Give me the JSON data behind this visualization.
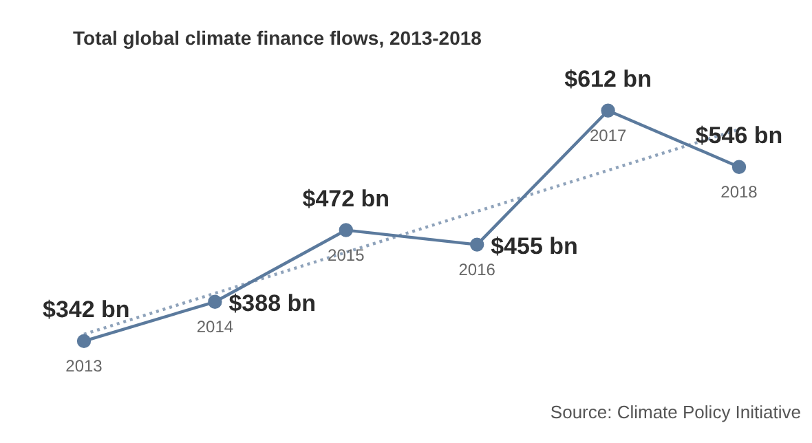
{
  "chart_data": {
    "type": "line",
    "title": "Total global climate finance flows, 2013-2018",
    "categories": [
      "2013",
      "2014",
      "2015",
      "2016",
      "2017",
      "2018"
    ],
    "series": [
      {
        "type": "line",
        "color": "#5b7a9d",
        "values": [
          342,
          388,
          472,
          455,
          612,
          546
        ],
        "value_labels": [
          "$342 bn",
          "$388 bn",
          "$472 bn",
          "$455 bn",
          "$612 bn",
          "$546 bn"
        ],
        "marker": "circle",
        "line_style": "solid"
      },
      {
        "type": "line",
        "color": "#8fa3bb",
        "values": [
          350,
          398,
          446,
          494,
          542,
          590
        ],
        "marker": "none",
        "line_style": "dotted"
      }
    ],
    "tick_labels": false,
    "grid": false,
    "legend": false,
    "annotations": [
      "Source: Climate Policy Initiative"
    ]
  }
}
